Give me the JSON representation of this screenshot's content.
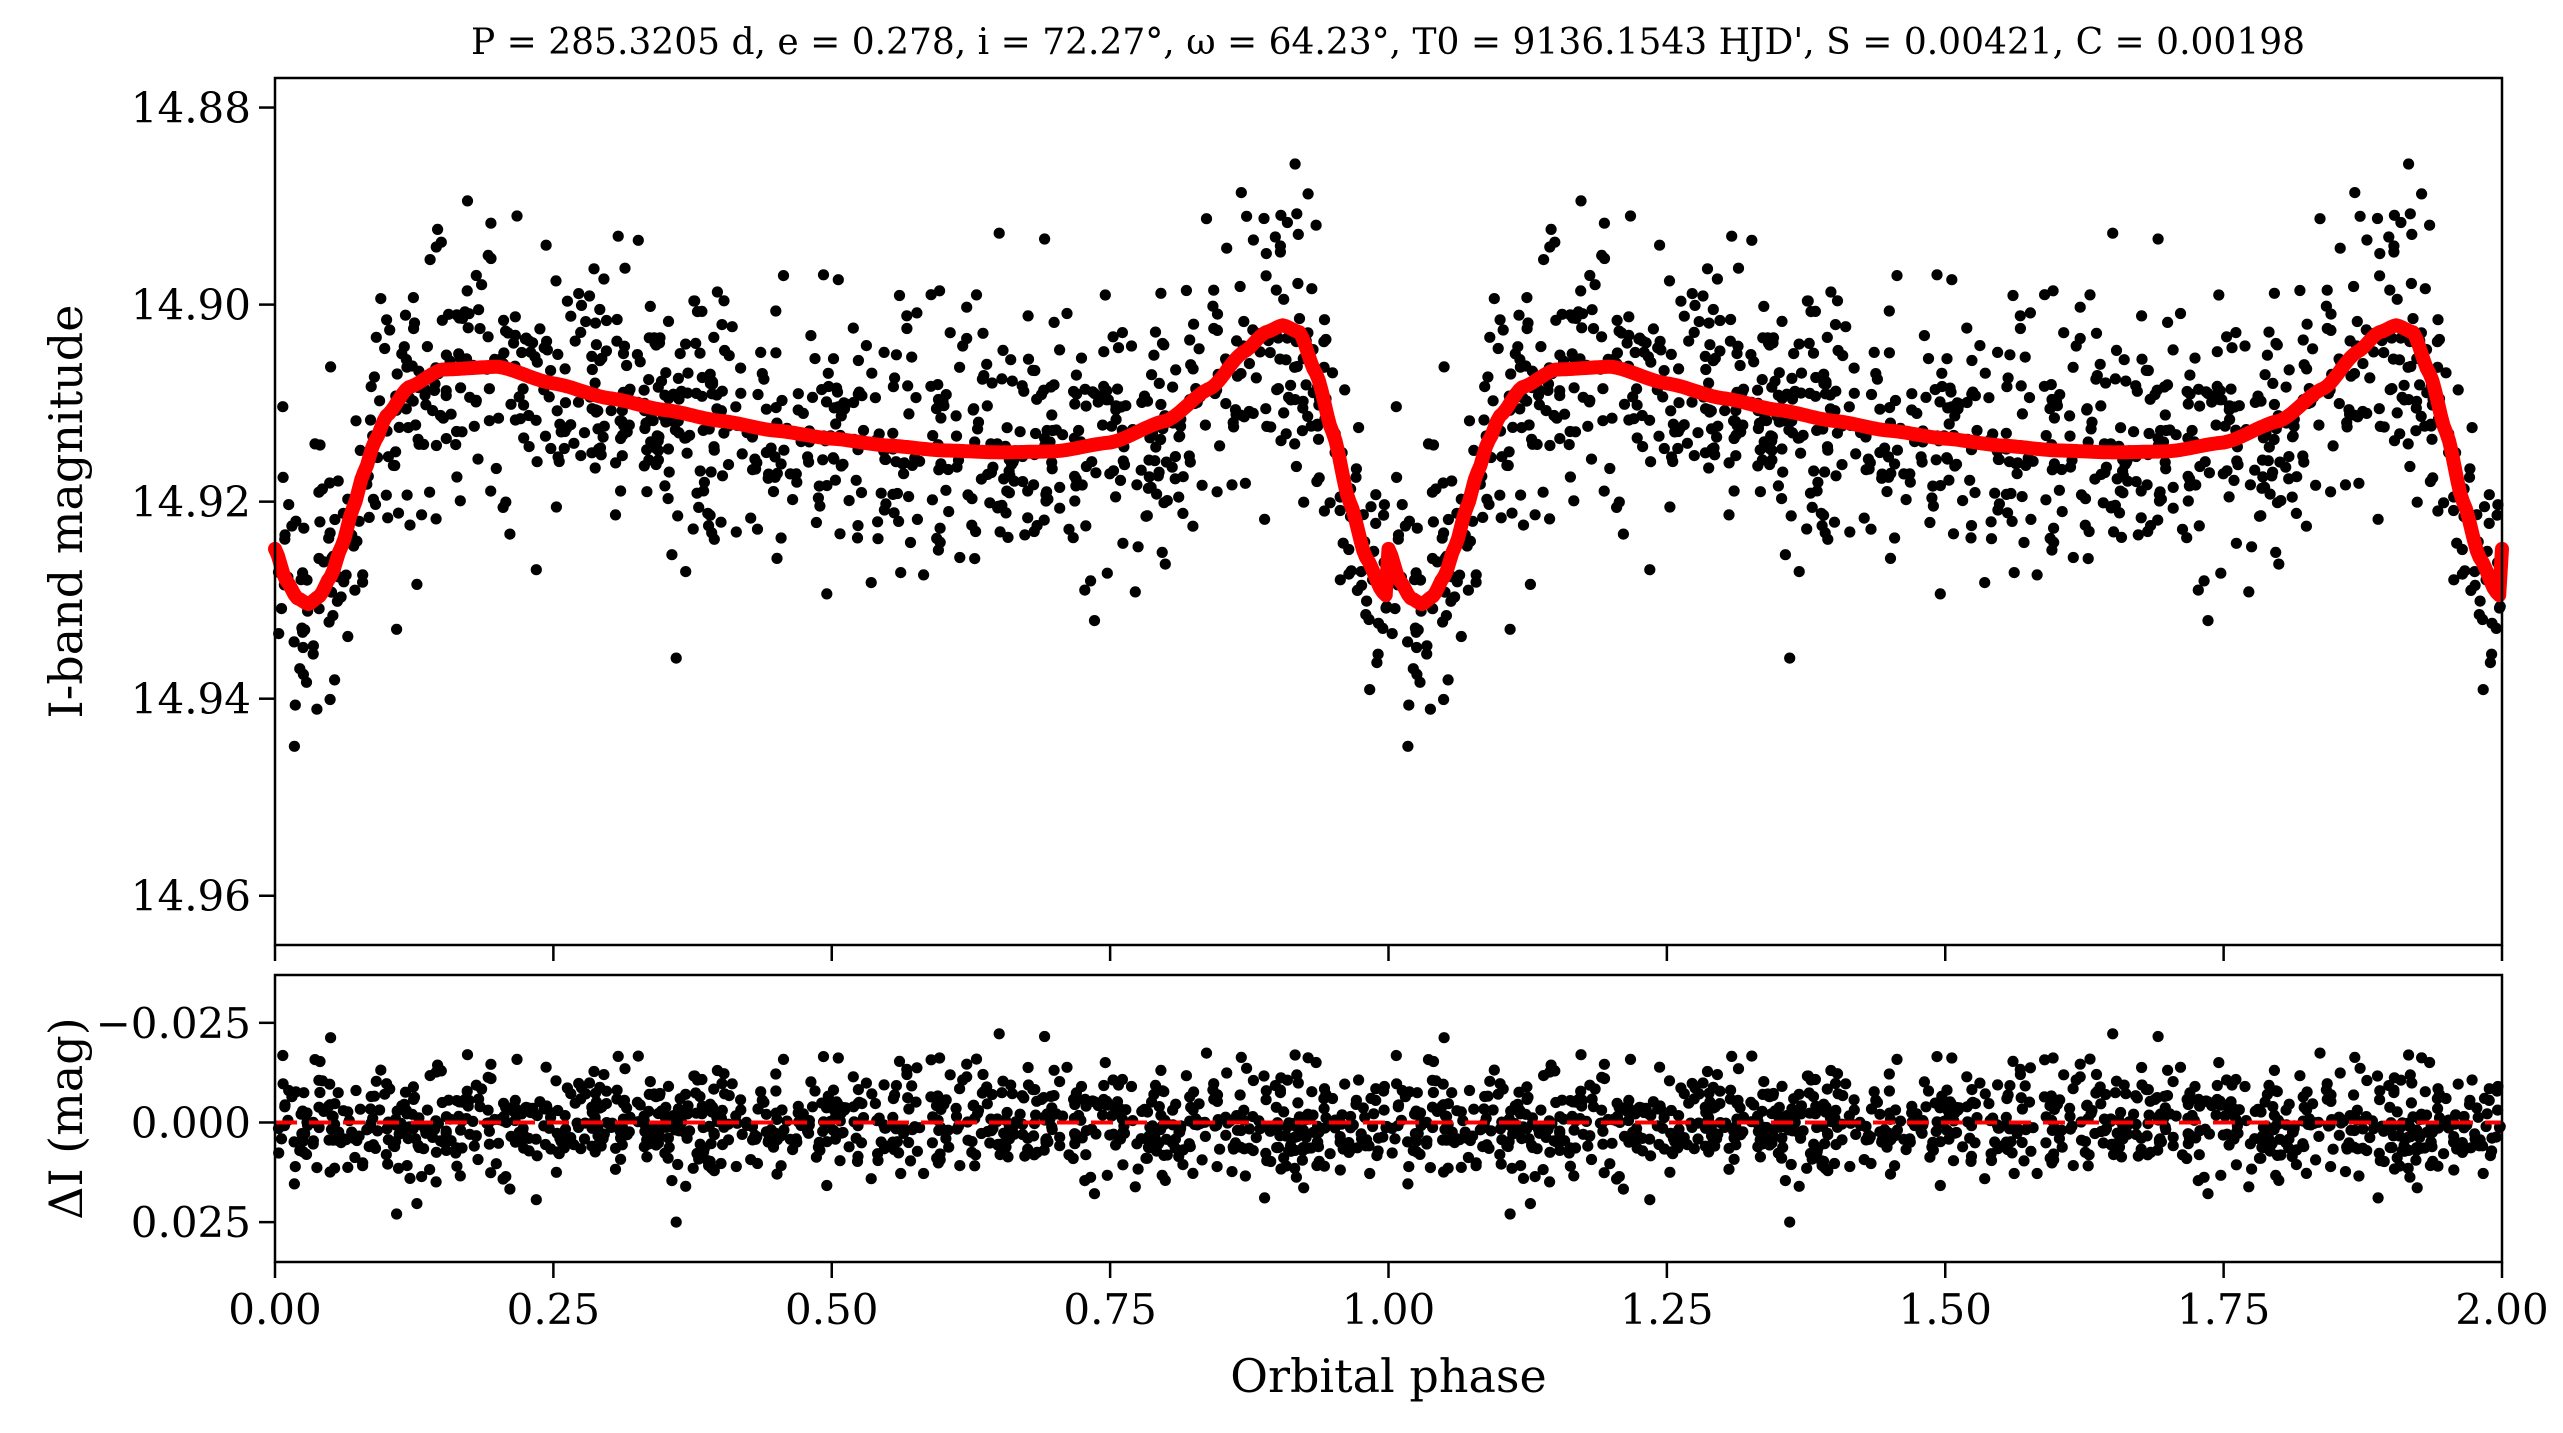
{
  "title": "P = 285.3205 d, e = 0.278, i = 72.27°, ω = 64.23°, T0 = 9136.1543 HJD', S = 0.00421, C = 0.00198",
  "chart_data": [
    {
      "type": "scatter",
      "panel": "light-curve",
      "xlabel": "",
      "ylabel": "I-band magnitude",
      "xlim": [
        0.0,
        2.0
      ],
      "ylim": [
        14.965,
        14.877
      ],
      "y_inverted": true,
      "yticks": [
        14.88,
        14.9,
        14.92,
        14.94,
        14.96
      ],
      "ytick_labels": [
        "14.88",
        "14.90",
        "14.92",
        "14.94",
        "14.96"
      ],
      "xticks": [
        0.0,
        0.25,
        0.5,
        0.75,
        1.0,
        1.25,
        1.5,
        1.75,
        2.0
      ],
      "x_tick_labels_shown": false,
      "grid": false,
      "series": [
        {
          "kind": "points",
          "color": "#000000",
          "points_note_count": 2000,
          "approx_scatter_sigma_mag": 0.0065
        },
        {
          "kind": "model-line",
          "color": "#ff0000",
          "model_samples": [
            [
              0.0,
              14.9248
            ],
            [
              0.01,
              14.928
            ],
            [
              0.02,
              14.9298
            ],
            [
              0.03,
              14.9304
            ],
            [
              0.04,
              14.9296
            ],
            [
              0.05,
              14.9276
            ],
            [
              0.06,
              14.9245
            ],
            [
              0.07,
              14.9207
            ],
            [
              0.08,
              14.917
            ],
            [
              0.09,
              14.9138
            ],
            [
              0.1,
              14.9113
            ],
            [
              0.12,
              14.9084
            ],
            [
              0.15,
              14.9066
            ],
            [
              0.2,
              14.9063
            ],
            [
              0.25,
              14.908
            ],
            [
              0.3,
              14.9095
            ],
            [
              0.35,
              14.9107
            ],
            [
              0.4,
              14.9118
            ],
            [
              0.45,
              14.9128
            ],
            [
              0.5,
              14.9136
            ],
            [
              0.55,
              14.9143
            ],
            [
              0.6,
              14.9148
            ],
            [
              0.65,
              14.915
            ],
            [
              0.7,
              14.9149
            ],
            [
              0.75,
              14.914
            ],
            [
              0.8,
              14.9118
            ],
            [
              0.84,
              14.9085
            ],
            [
              0.87,
              14.9048
            ],
            [
              0.89,
              14.9028
            ],
            [
              0.905,
              14.9021
            ],
            [
              0.92,
              14.9028
            ],
            [
              0.935,
              14.907
            ],
            [
              0.95,
              14.913
            ],
            [
              0.965,
              14.92
            ],
            [
              0.98,
              14.9257
            ],
            [
              0.995,
              14.9292
            ],
            [
              1.0,
              14.9298
            ]
          ]
        }
      ]
    },
    {
      "type": "scatter",
      "panel": "residuals",
      "xlabel": "Orbital phase",
      "ylabel": "ΔI (mag)",
      "xlim": [
        0.0,
        2.0
      ],
      "ylim": [
        0.035,
        -0.037
      ],
      "y_inverted": true,
      "yticks": [
        -0.025,
        0.0,
        0.025
      ],
      "ytick_labels": [
        "−0.025",
        "0.000",
        "0.025"
      ],
      "xticks": [
        0.0,
        0.25,
        0.5,
        0.75,
        1.0,
        1.25,
        1.5,
        1.75,
        2.0
      ],
      "xtick_labels": [
        "0.00",
        "0.25",
        "0.50",
        "0.75",
        "1.00",
        "1.25",
        "1.50",
        "1.75",
        "2.00"
      ],
      "grid": false,
      "series": [
        {
          "kind": "points",
          "color": "#000000",
          "approx_scatter_sigma_mag": 0.0065
        },
        {
          "kind": "zero-line",
          "color": "#ff0000",
          "style": "dashed",
          "value": 0.0
        }
      ]
    }
  ]
}
